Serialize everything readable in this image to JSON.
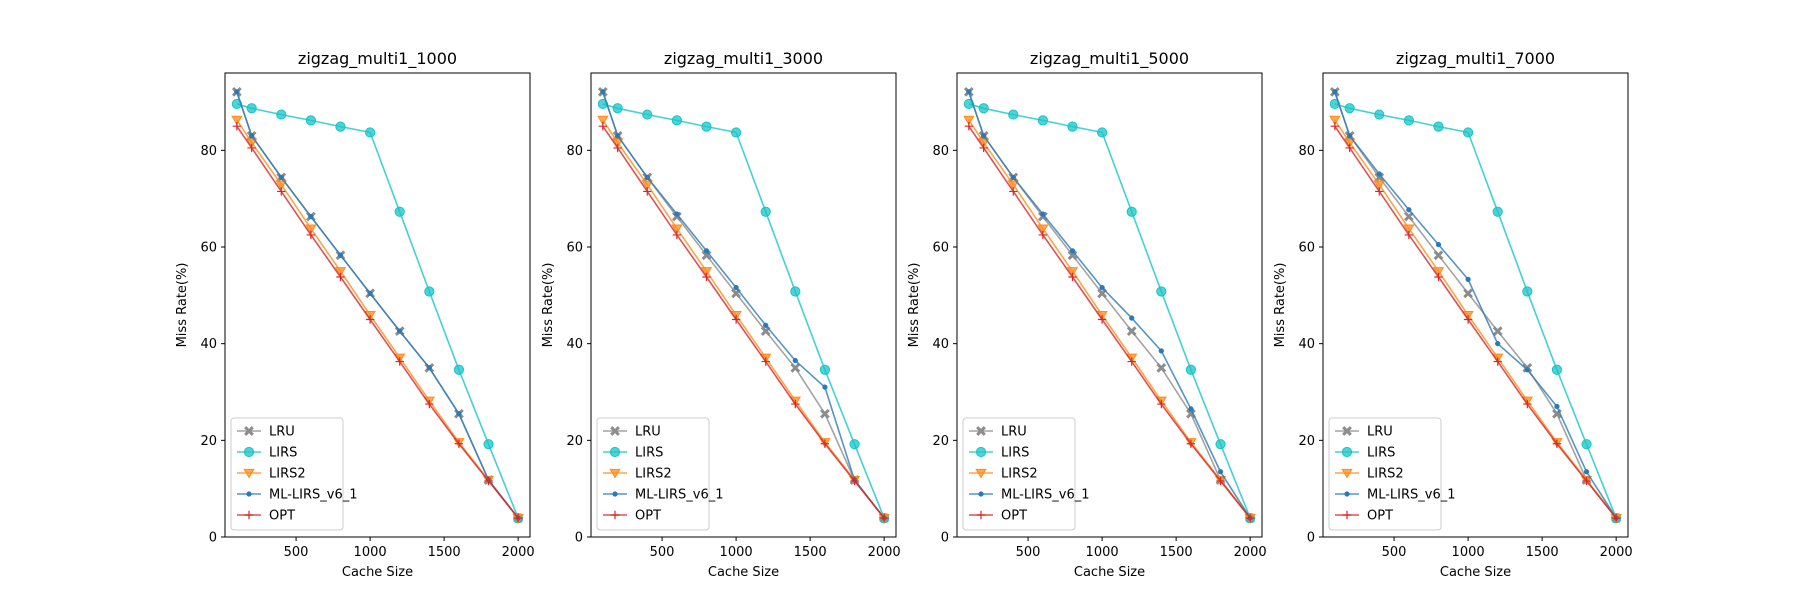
{
  "colors": {
    "LRU": "#8c8c8c",
    "LIRS": "#17c4c8",
    "LIRS2": "#ff8c1a",
    "ML-LIRS_v6_1": "#2a7ab8",
    "OPT": "#d62728"
  },
  "series_order": [
    "LRU",
    "LIRS",
    "LIRS2",
    "ML-LIRS_v6_1",
    "OPT"
  ],
  "markers": {
    "LRU": "x-marker",
    "LIRS": "circle-marker",
    "LIRS2": "triangle-down-marker",
    "ML-LIRS_v6_1": "small-dot-marker",
    "OPT": "plus-marker"
  },
  "chart_data": [
    {
      "type": "line",
      "title": "zigzag_multi1_1000",
      "xlabel": "Cache Size",
      "ylabel": "Miss Rate(%)",
      "xlim": [
        20,
        2080
      ],
      "ylim": [
        0,
        96
      ],
      "xticks": [
        "500",
        "1000",
        "1500",
        "2000"
      ],
      "yticks": [
        "0",
        "20",
        "40",
        "60",
        "80"
      ],
      "legend_location": "lower-left",
      "x": [
        100,
        200,
        400,
        600,
        800,
        1000,
        1200,
        1400,
        1600,
        1800,
        2000
      ],
      "series": [
        {
          "name": "LRU",
          "values": [
            92.1,
            83.0,
            74.4,
            66.3,
            58.3,
            50.4,
            42.6,
            35.0,
            25.5,
            11.8,
            3.9
          ]
        },
        {
          "name": "LIRS",
          "values": [
            89.6,
            88.7,
            87.4,
            86.2,
            84.9,
            83.7,
            67.3,
            50.8,
            34.6,
            19.2,
            3.9
          ]
        },
        {
          "name": "LIRS2",
          "values": [
            86.3,
            81.6,
            72.9,
            63.8,
            55.0,
            45.9,
            37.1,
            28.2,
            19.6,
            11.8,
            3.9
          ]
        },
        {
          "name": "ML-LIRS_v6_1",
          "values": [
            92.1,
            83.0,
            74.4,
            66.3,
            58.3,
            50.4,
            42.6,
            35.0,
            25.5,
            11.8,
            3.9
          ]
        },
        {
          "name": "OPT",
          "values": [
            85.0,
            80.5,
            71.5,
            62.5,
            53.8,
            45.0,
            36.3,
            27.5,
            19.3,
            11.6,
            3.9
          ]
        }
      ]
    },
    {
      "type": "line",
      "title": "zigzag_multi1_3000",
      "xlabel": "Cache Size",
      "ylabel": "Miss Rate(%)",
      "xlim": [
        20,
        2080
      ],
      "ylim": [
        0,
        96
      ],
      "xticks": [
        "500",
        "1000",
        "1500",
        "2000"
      ],
      "yticks": [
        "0",
        "20",
        "40",
        "60",
        "80"
      ],
      "legend_location": "lower-left",
      "x": [
        100,
        200,
        400,
        600,
        800,
        1000,
        1200,
        1400,
        1600,
        1800,
        2000
      ],
      "series": [
        {
          "name": "LRU",
          "values": [
            92.1,
            83.0,
            74.4,
            66.3,
            58.3,
            50.4,
            42.6,
            35.0,
            25.5,
            11.8,
            3.9
          ]
        },
        {
          "name": "LIRS",
          "values": [
            89.6,
            88.7,
            87.4,
            86.2,
            84.9,
            83.7,
            67.3,
            50.8,
            34.6,
            19.2,
            3.9
          ]
        },
        {
          "name": "LIRS2",
          "values": [
            86.3,
            81.6,
            72.9,
            63.8,
            55.0,
            45.9,
            37.1,
            28.2,
            19.6,
            11.8,
            3.9
          ]
        },
        {
          "name": "ML-LIRS_v6_1",
          "values": [
            92.1,
            83.0,
            74.4,
            66.8,
            59.2,
            51.6,
            43.8,
            36.5,
            31.0,
            11.8,
            3.9
          ]
        },
        {
          "name": "OPT",
          "values": [
            85.0,
            80.5,
            71.5,
            62.5,
            53.8,
            45.0,
            36.3,
            27.5,
            19.3,
            11.6,
            3.9
          ]
        }
      ]
    },
    {
      "type": "line",
      "title": "zigzag_multi1_5000",
      "xlabel": "Cache Size",
      "ylabel": "Miss Rate(%)",
      "xlim": [
        20,
        2080
      ],
      "ylim": [
        0,
        96
      ],
      "xticks": [
        "500",
        "1000",
        "1500",
        "2000"
      ],
      "yticks": [
        "0",
        "20",
        "40",
        "60",
        "80"
      ],
      "legend_location": "lower-left",
      "x": [
        100,
        200,
        400,
        600,
        800,
        1000,
        1200,
        1400,
        1600,
        1800,
        2000
      ],
      "series": [
        {
          "name": "LRU",
          "values": [
            92.1,
            83.0,
            74.4,
            66.3,
            58.3,
            50.4,
            42.6,
            35.0,
            25.5,
            11.8,
            3.9
          ]
        },
        {
          "name": "LIRS",
          "values": [
            89.6,
            88.7,
            87.4,
            86.2,
            84.9,
            83.7,
            67.3,
            50.8,
            34.6,
            19.2,
            3.9
          ]
        },
        {
          "name": "LIRS2",
          "values": [
            86.3,
            81.6,
            72.9,
            63.8,
            55.0,
            45.9,
            37.1,
            28.2,
            19.6,
            11.8,
            3.9
          ]
        },
        {
          "name": "ML-LIRS_v6_1",
          "values": [
            92.1,
            83.0,
            74.4,
            66.8,
            59.2,
            51.6,
            45.3,
            38.5,
            26.5,
            13.5,
            3.9
          ]
        },
        {
          "name": "OPT",
          "values": [
            85.0,
            80.5,
            71.5,
            62.5,
            53.8,
            45.0,
            36.3,
            27.5,
            19.3,
            11.6,
            3.9
          ]
        }
      ]
    },
    {
      "type": "line",
      "title": "zigzag_multi1_7000",
      "xlabel": "Cache Size",
      "ylabel": "Miss Rate(%)",
      "xlim": [
        20,
        2080
      ],
      "ylim": [
        0,
        96
      ],
      "xticks": [
        "500",
        "1000",
        "1500",
        "2000"
      ],
      "yticks": [
        "0",
        "20",
        "40",
        "60",
        "80"
      ],
      "legend_location": "lower-left",
      "x": [
        100,
        200,
        400,
        600,
        800,
        1000,
        1200,
        1400,
        1600,
        1800,
        2000
      ],
      "series": [
        {
          "name": "LRU",
          "values": [
            92.1,
            83.0,
            74.4,
            66.3,
            58.3,
            50.4,
            42.6,
            35.0,
            25.5,
            11.8,
            3.9
          ]
        },
        {
          "name": "LIRS",
          "values": [
            89.6,
            88.7,
            87.4,
            86.2,
            84.9,
            83.7,
            67.3,
            50.8,
            34.6,
            19.2,
            3.9
          ]
        },
        {
          "name": "LIRS2",
          "values": [
            86.3,
            81.6,
            72.9,
            63.8,
            55.0,
            45.9,
            37.1,
            28.2,
            19.6,
            11.8,
            3.9
          ]
        },
        {
          "name": "ML-LIRS_v6_1",
          "values": [
            92.1,
            83.0,
            75.1,
            67.7,
            60.5,
            53.3,
            40.0,
            34.6,
            27.0,
            13.5,
            3.9
          ]
        },
        {
          "name": "OPT",
          "values": [
            85.0,
            80.5,
            71.5,
            62.5,
            53.8,
            45.0,
            36.3,
            27.5,
            19.3,
            11.6,
            3.9
          ]
        }
      ]
    }
  ]
}
